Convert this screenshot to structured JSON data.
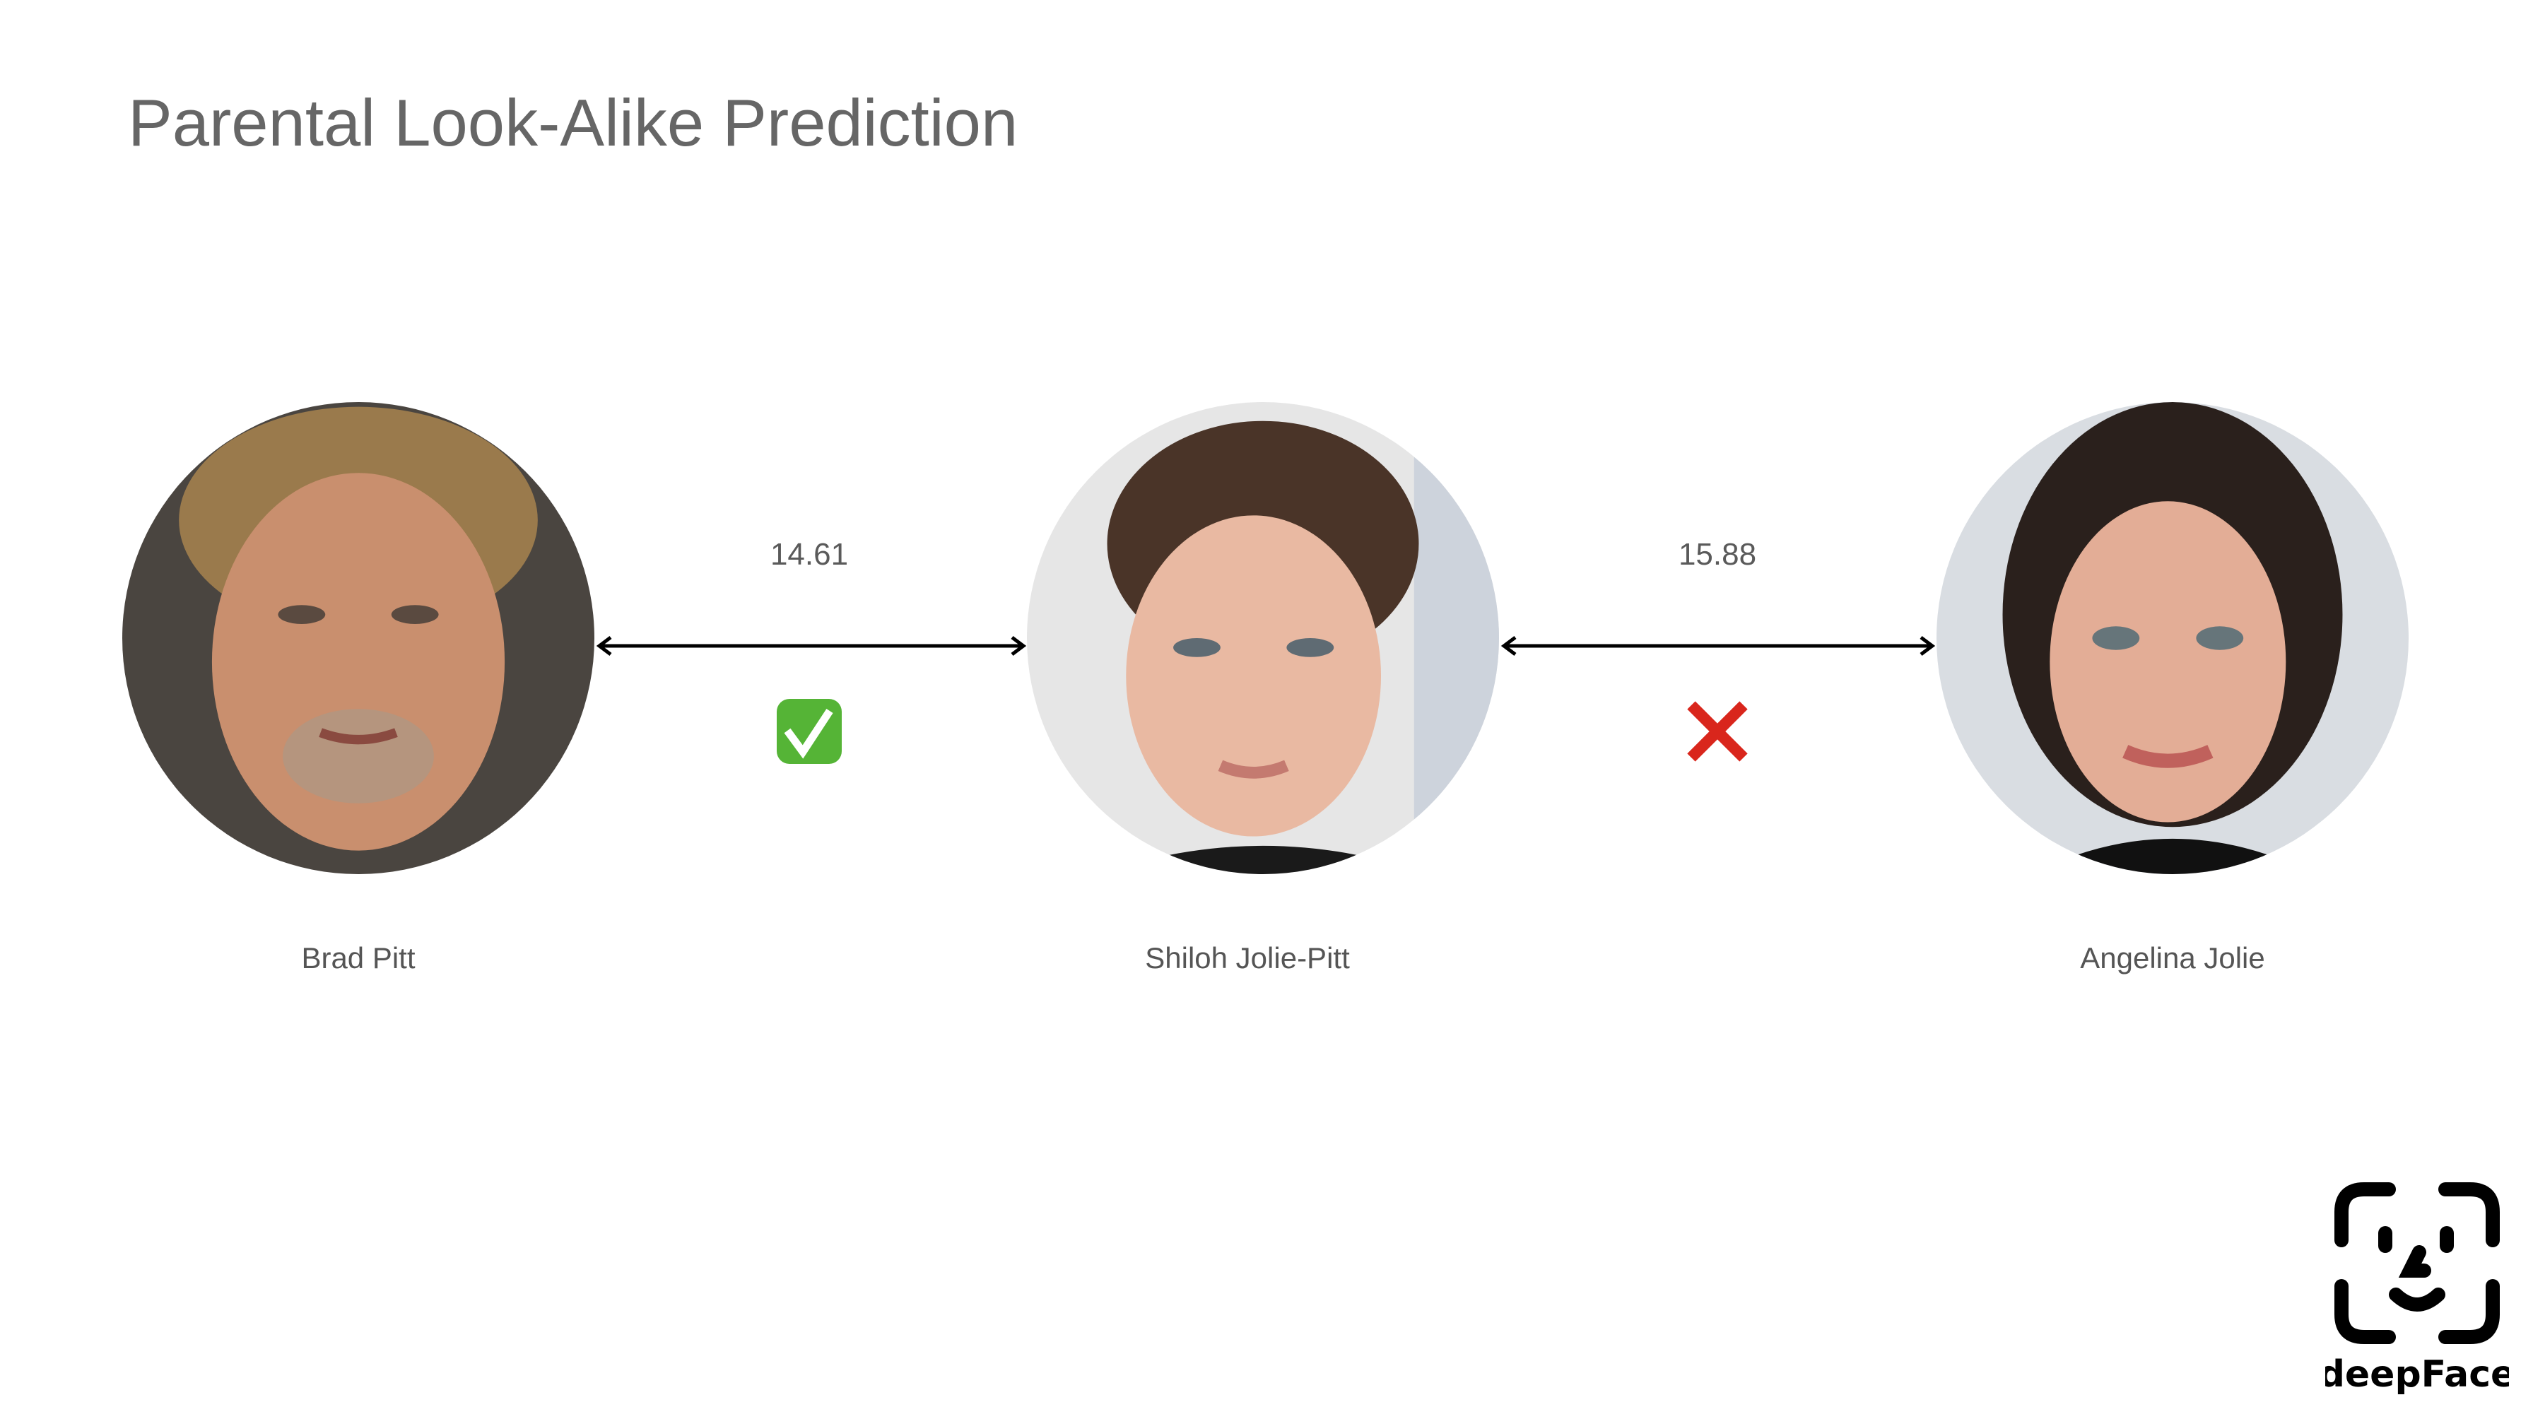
{
  "title": "Parental Look-Alike Prediction",
  "people": [
    {
      "name": "Brad Pitt"
    },
    {
      "name": "Shiloh Jolie-Pitt"
    },
    {
      "name": "Angelina Jolie"
    }
  ],
  "comparisons": [
    {
      "score": "14.61",
      "verdict": "match",
      "verdict_icon": "check-mark-icon",
      "color": "#55b436"
    },
    {
      "score": "15.88",
      "verdict": "no-match",
      "verdict_icon": "cross-mark-icon",
      "color": "#d9261c"
    }
  ],
  "logo": {
    "text": "deepFace"
  }
}
